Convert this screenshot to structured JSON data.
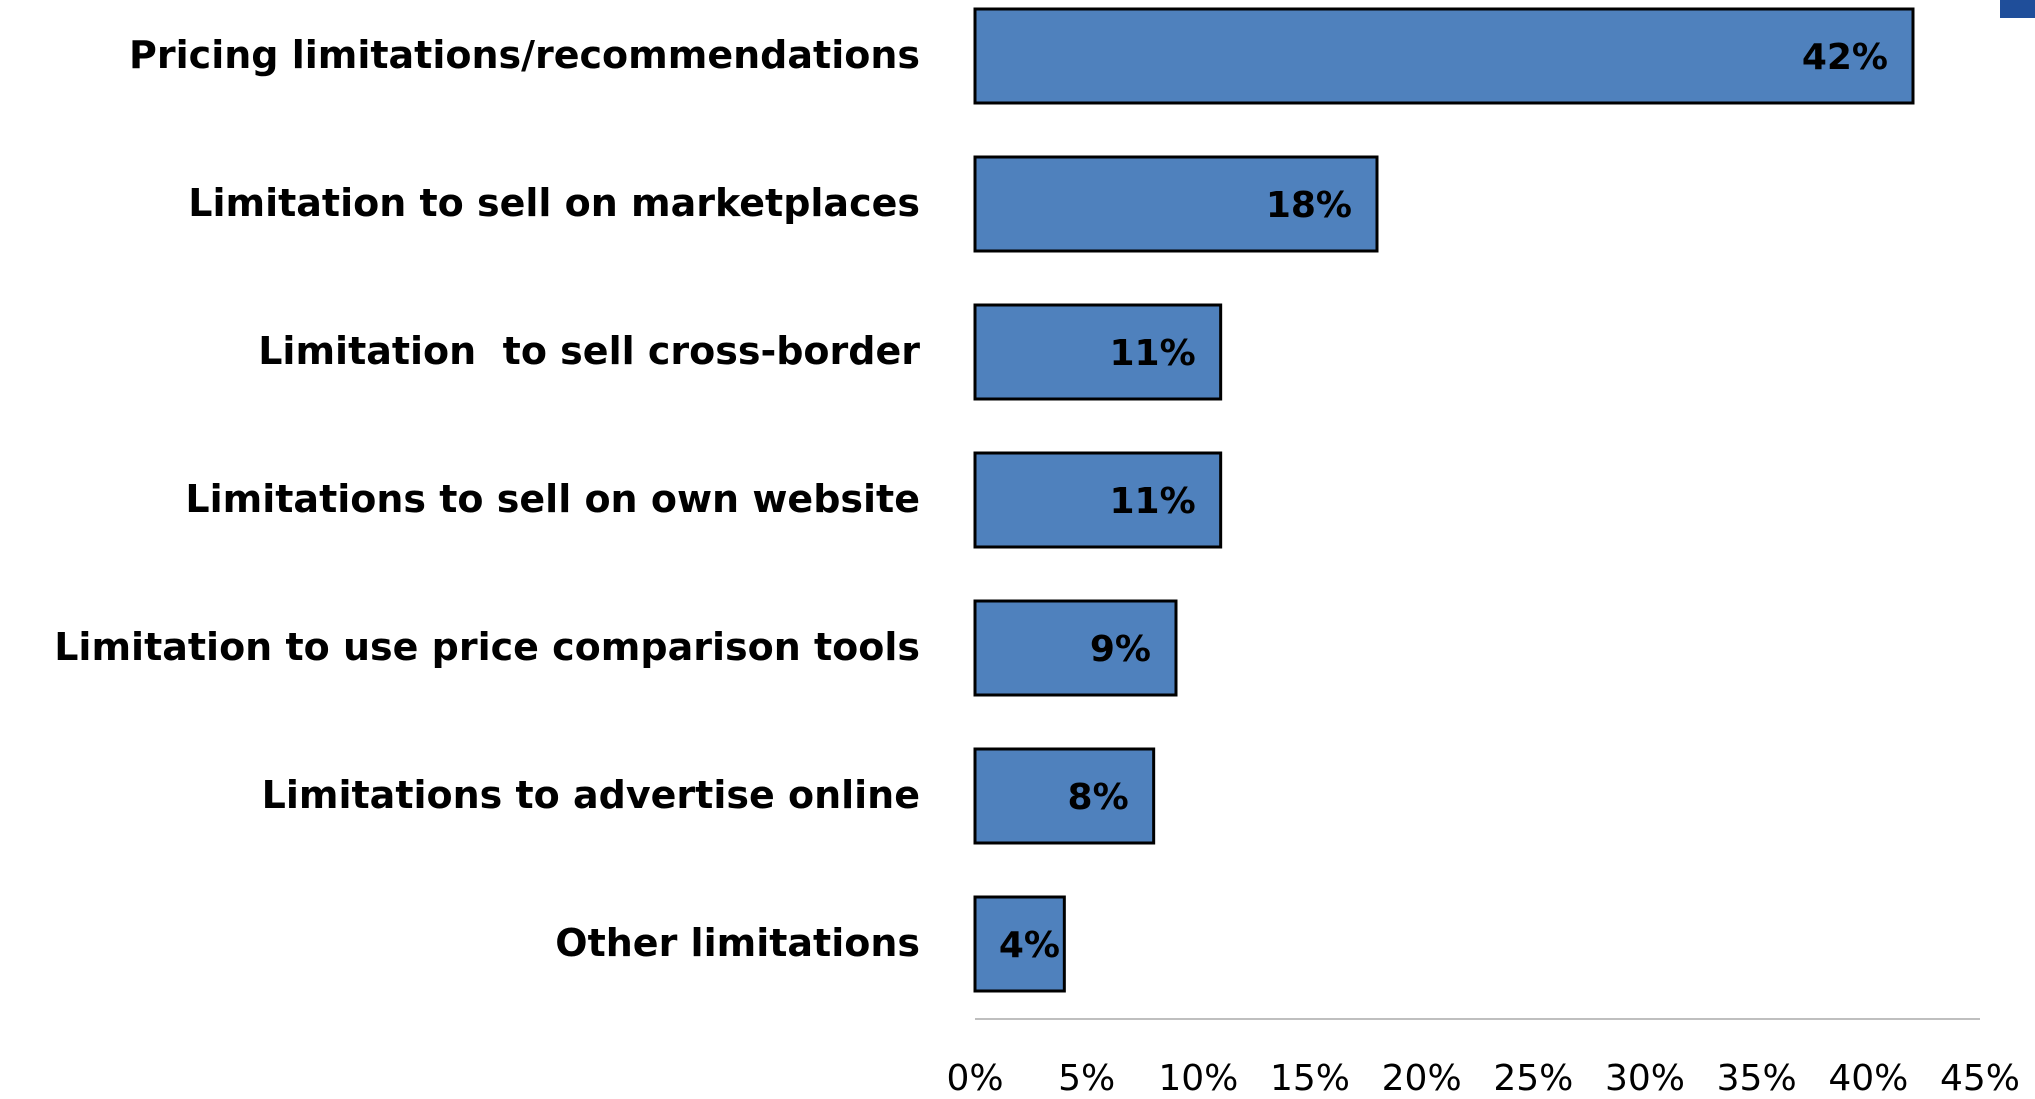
{
  "chart_data": {
    "type": "hbar",
    "categories": [
      "Pricing limitations/recommendations",
      "Limitation to sell on marketplaces",
      "Limitation  to sell cross-border",
      "Limitations to sell on own website",
      "Limitation to use price comparison tools",
      "Limitations to advertise online",
      "Other limitations"
    ],
    "values": [
      42,
      18,
      11,
      11,
      9,
      8,
      4
    ],
    "value_labels": [
      "42%",
      "18%",
      "11%",
      "11%",
      "9%",
      "8%",
      "4%"
    ],
    "color": "#4f81bd",
    "xlim": [
      0,
      45
    ],
    "xticks": [
      {
        "value": 0,
        "label": "0%"
      },
      {
        "value": 5,
        "label": "5%"
      },
      {
        "value": 10,
        "label": "10%"
      },
      {
        "value": 15,
        "label": "15%"
      },
      {
        "value": 20,
        "label": "20%"
      },
      {
        "value": 25,
        "label": "25%"
      },
      {
        "value": 30,
        "label": "30%"
      },
      {
        "value": 35,
        "label": "35%"
      },
      {
        "value": 40,
        "label": "40%"
      },
      {
        "value": 45,
        "label": "45%"
      }
    ],
    "grid": false
  }
}
